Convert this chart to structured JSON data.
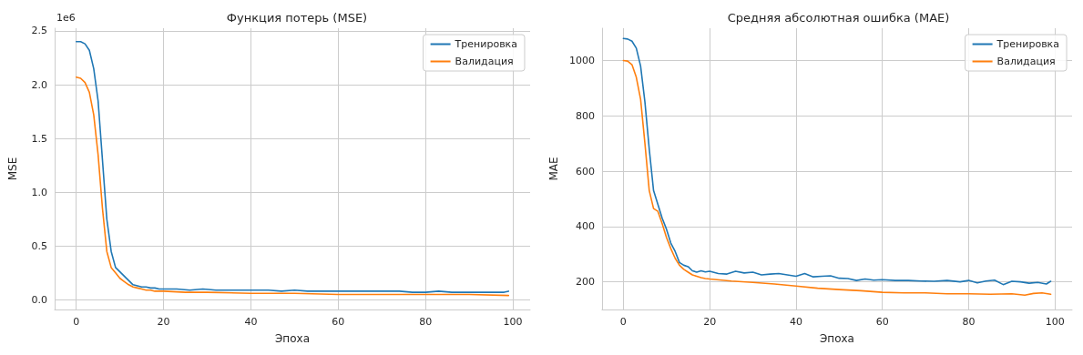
{
  "chart_data": [
    {
      "type": "line",
      "title": "Функция потерь (MSE)",
      "xlabel": "Эпоха",
      "ylabel": "MSE",
      "annotations": [
        "1e6"
      ],
      "legend": "top right",
      "grid": true,
      "marker": "none",
      "line_style": "solid",
      "xlim": [
        -4.95,
        103.95
      ],
      "xticks": [
        0,
        20,
        40,
        60,
        80,
        100
      ],
      "ylim": [
        -0.09,
        2.525
      ],
      "yticks": [
        {
          "value": 0,
          "label": "0.0"
        },
        0.5,
        {
          "value": 1,
          "label": "1.0"
        },
        1.5,
        {
          "value": 2,
          "label": "2.0"
        },
        2.5
      ],
      "series": [
        {
          "name": "Тренировка",
          "color": "#1f77b4",
          "x": [
            0,
            1,
            2,
            3,
            4,
            5,
            6,
            7,
            8,
            9,
            10,
            11,
            12,
            13,
            14,
            15,
            16,
            17,
            18,
            19,
            20,
            23,
            26,
            29,
            32,
            35,
            38,
            41,
            44,
            47,
            50,
            53,
            56,
            59,
            62,
            65,
            68,
            71,
            74,
            77,
            80,
            83,
            86,
            89,
            92,
            95,
            98,
            99
          ],
          "values": [
            2.4,
            2.4,
            2.38,
            2.32,
            2.15,
            1.85,
            1.3,
            0.75,
            0.45,
            0.3,
            0.26,
            0.22,
            0.18,
            0.14,
            0.13,
            0.12,
            0.12,
            0.11,
            0.11,
            0.1,
            0.1,
            0.1,
            0.09,
            0.1,
            0.09,
            0.09,
            0.09,
            0.09,
            0.09,
            0.08,
            0.09,
            0.08,
            0.08,
            0.08,
            0.08,
            0.08,
            0.08,
            0.08,
            0.08,
            0.07,
            0.07,
            0.08,
            0.07,
            0.07,
            0.07,
            0.07,
            0.07,
            0.08
          ]
        },
        {
          "name": "Валидация",
          "color": "#ff7f0e",
          "x": [
            0,
            1,
            2,
            3,
            4,
            5,
            6,
            7,
            8,
            9,
            10,
            11,
            12,
            13,
            14,
            15,
            16,
            17,
            18,
            19,
            20,
            25,
            30,
            40,
            50,
            60,
            70,
            80,
            90,
            99
          ],
          "values": [
            2.07,
            2.06,
            2.02,
            1.93,
            1.72,
            1.35,
            0.85,
            0.45,
            0.3,
            0.25,
            0.2,
            0.17,
            0.14,
            0.12,
            0.11,
            0.1,
            0.09,
            0.09,
            0.08,
            0.08,
            0.08,
            0.07,
            0.07,
            0.06,
            0.06,
            0.05,
            0.05,
            0.05,
            0.05,
            0.04
          ]
        }
      ]
    },
    {
      "type": "line",
      "title": "Средняя абсолютная ошибка (MAE)",
      "xlabel": "Эпоха",
      "ylabel": "MAE",
      "legend": "top right",
      "grid": true,
      "marker": "none",
      "line_style": "solid",
      "xlim": [
        -4.95,
        103.95
      ],
      "xticks": [
        0,
        20,
        40,
        60,
        80,
        100
      ],
      "ylim": [
        100,
        1117
      ],
      "yticks": [
        200,
        400,
        600,
        800,
        1000
      ],
      "series": [
        {
          "name": "Тренировка",
          "color": "#1f77b4",
          "x": [
            0,
            1,
            2,
            3,
            4,
            5,
            6,
            7,
            8,
            9,
            10,
            11,
            12,
            13,
            14,
            15,
            16,
            17,
            18,
            19,
            20,
            22,
            24,
            26,
            28,
            30,
            32,
            34,
            36,
            38,
            40,
            42,
            44,
            46,
            48,
            50,
            52,
            54,
            56,
            58,
            60,
            63,
            66,
            69,
            72,
            75,
            78,
            80,
            82,
            84,
            86,
            88,
            90,
            92,
            94,
            96,
            98,
            99
          ],
          "values": [
            1080,
            1078,
            1070,
            1045,
            980,
            850,
            680,
            530,
            480,
            430,
            390,
            340,
            310,
            270,
            260,
            255,
            240,
            235,
            240,
            236,
            238,
            230,
            228,
            238,
            232,
            235,
            225,
            228,
            230,
            225,
            220,
            230,
            218,
            220,
            222,
            213,
            212,
            205,
            210,
            206,
            208,
            205,
            205,
            203,
            202,
            205,
            200,
            205,
            196,
            203,
            206,
            190,
            202,
            200,
            195,
            198,
            192,
            202
          ]
        },
        {
          "name": "Валидация",
          "color": "#ff7f0e",
          "x": [
            0,
            1,
            2,
            3,
            4,
            5,
            6,
            7,
            8,
            9,
            10,
            11,
            12,
            13,
            14,
            15,
            16,
            17,
            18,
            19,
            20,
            25,
            30,
            35,
            40,
            45,
            50,
            55,
            60,
            65,
            70,
            75,
            80,
            85,
            90,
            93,
            95,
            97,
            99
          ],
          "values": [
            1000,
            998,
            985,
            940,
            860,
            700,
            530,
            465,
            455,
            410,
            360,
            320,
            285,
            260,
            245,
            235,
            225,
            220,
            215,
            212,
            210,
            203,
            198,
            192,
            185,
            177,
            172,
            168,
            162,
            160,
            160,
            157,
            157,
            155,
            157,
            152,
            158,
            160,
            155
          ]
        }
      ]
    }
  ]
}
